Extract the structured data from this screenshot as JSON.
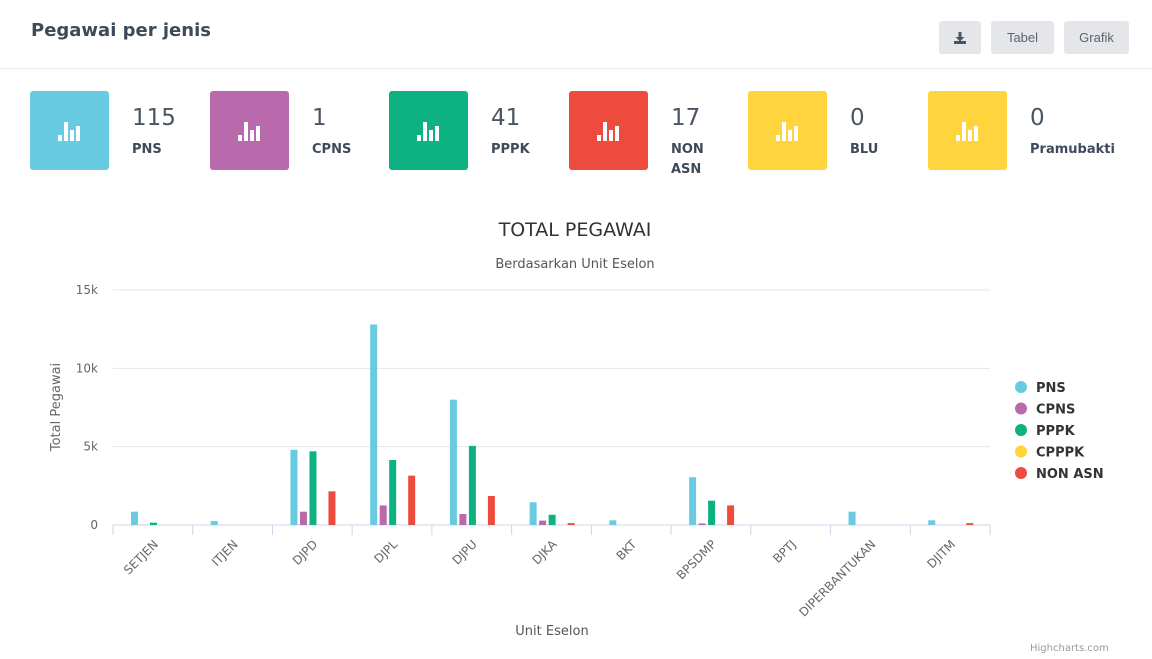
{
  "header": {
    "title": "Pegawai per jenis",
    "buttons": {
      "download_icon": "download-icon",
      "tabel": "Tabel",
      "grafik": "Grafik"
    }
  },
  "stats": [
    {
      "value": "115",
      "label": "PNS",
      "color": "#69cbe1",
      "icon": "bar-chart-icon"
    },
    {
      "value": "1",
      "label": "CPNS",
      "color": "#b86aad",
      "icon": "bar-chart-icon"
    },
    {
      "value": "41",
      "label": "PPPK",
      "color": "#0db182",
      "icon": "bar-chart-icon"
    },
    {
      "value": "17",
      "label": "NON ASN",
      "color": "#ee4b3f",
      "icon": "bar-chart-icon"
    },
    {
      "value": "0",
      "label": "BLU",
      "color": "#ffd43d",
      "icon": "bar-chart-icon"
    },
    {
      "value": "0",
      "label": "Pramubakti",
      "color": "#ffd43d",
      "icon": "bar-chart-icon"
    }
  ],
  "chart_data": {
    "type": "bar",
    "title": "TOTAL PEGAWAI",
    "subtitle": "Berdasarkan Unit Eselon",
    "xlabel": "Unit Eselon",
    "ylabel": "Total Pegawai",
    "ylim": [
      0,
      15000
    ],
    "yticks": [
      0,
      5000,
      10000,
      15000
    ],
    "ytick_labels": [
      "0",
      "5k",
      "10k",
      "15k"
    ],
    "categories": [
      "SETJEN",
      "ITJEN",
      "DJPD",
      "DJPL",
      "DJPU",
      "DJKA",
      "BKT",
      "BPSDMP",
      "BPTJ",
      "DIPERBANTUKAN",
      "DJITM"
    ],
    "series": [
      {
        "name": "PNS",
        "color": "#69cbe1",
        "values": [
          850,
          250,
          4800,
          12800,
          8000,
          1450,
          300,
          3050,
          0,
          850,
          300
        ]
      },
      {
        "name": "CPNS",
        "color": "#b86aad",
        "values": [
          10,
          0,
          850,
          1250,
          700,
          280,
          0,
          100,
          0,
          0,
          0
        ]
      },
      {
        "name": "PPPK",
        "color": "#0db182",
        "values": [
          150,
          0,
          4700,
          4150,
          5050,
          650,
          0,
          1550,
          0,
          0,
          0
        ]
      },
      {
        "name": "CPPPK",
        "color": "#ffd43d",
        "values": [
          0,
          0,
          0,
          0,
          0,
          0,
          0,
          0,
          0,
          0,
          0
        ]
      },
      {
        "name": "NON ASN",
        "color": "#ee4b3f",
        "values": [
          0,
          0,
          2150,
          3150,
          1850,
          120,
          0,
          1250,
          0,
          0,
          120
        ]
      }
    ],
    "legend_position": "right",
    "grid": true
  },
  "credits": "Highcharts.com"
}
